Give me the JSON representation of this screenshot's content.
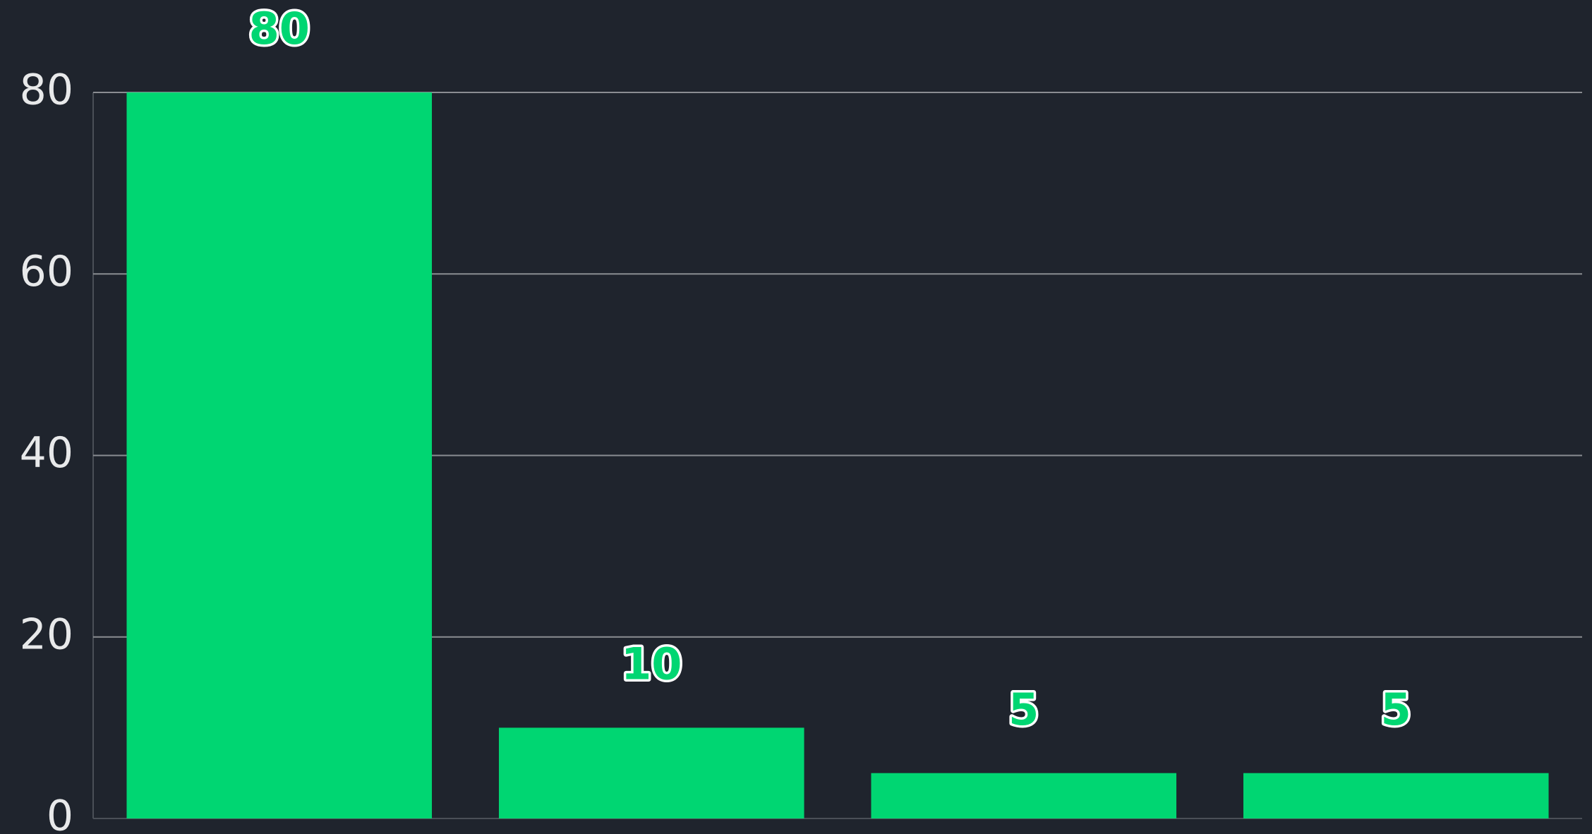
{
  "chart_data": {
    "type": "bar",
    "categories": [
      null,
      null,
      null,
      null
    ],
    "values": [
      80,
      10,
      5,
      5
    ],
    "color": "#00d672",
    "ylim": [
      0,
      80
    ],
    "yticks": [
      0,
      20,
      40,
      60,
      80
    ],
    "grid": true
  }
}
